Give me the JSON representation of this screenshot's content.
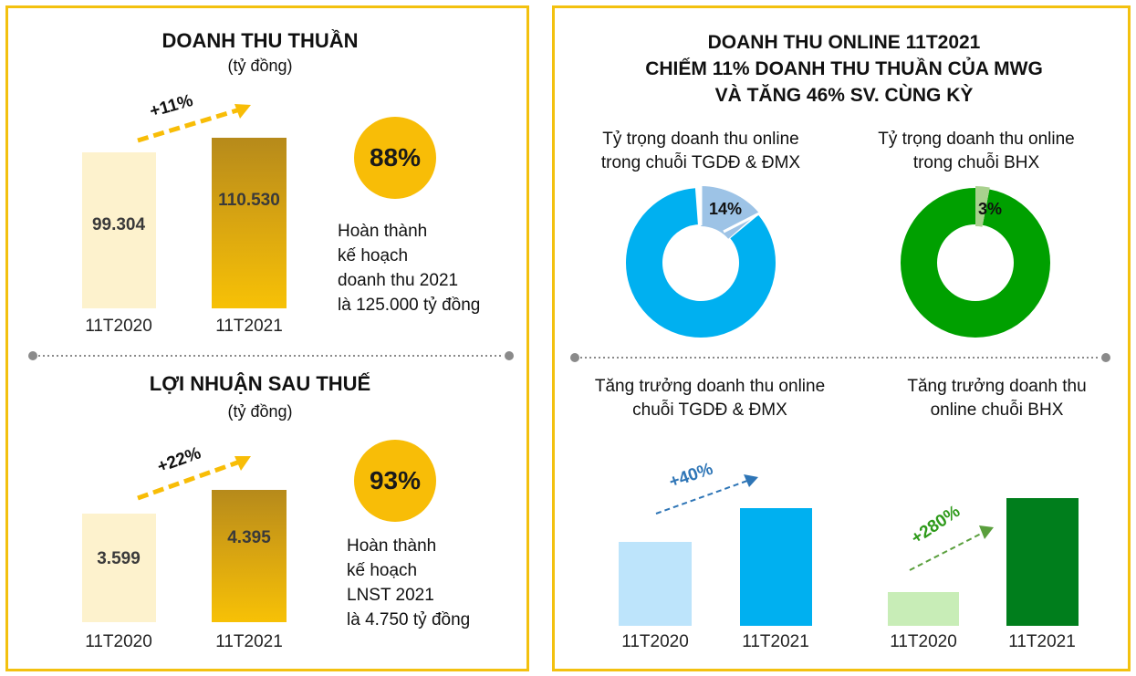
{
  "left": {
    "revenue": {
      "title": "DOANH THU THUẦN",
      "unit": "(tỷ đồng)",
      "growth": "+11%",
      "bars": [
        {
          "label": "11T2020",
          "value": "99.304"
        },
        {
          "label": "11T2021",
          "value": "110.530"
        }
      ],
      "completion": "88%",
      "note": [
        "Hoàn thành",
        "kế hoạch",
        "doanh thu 2021",
        "là 125.000 tỷ đồng"
      ]
    },
    "profit": {
      "title": "LỢI NHUẬN SAU THUẾ",
      "unit": "(tỷ đồng)",
      "growth": "+22%",
      "bars": [
        {
          "label": "11T2020",
          "value": "3.599"
        },
        {
          "label": "11T2021",
          "value": "4.395"
        }
      ],
      "completion": "93%",
      "note": [
        "Hoàn thành",
        "kế hoạch",
        "LNST 2021",
        "là 4.750 tỷ đồng"
      ]
    }
  },
  "right": {
    "title": [
      "DOANH THU ONLINE 11T2021",
      "CHIẾM 11% DOANH THU THUẦN CỦA MWG",
      "VÀ TĂNG 46% SV. CÙNG KỲ"
    ],
    "donut_tgdd": {
      "title": [
        "Tỷ trọng doanh thu online",
        "trong chuỗi TGDĐ & ĐMX"
      ],
      "label": "14%"
    },
    "donut_bhx": {
      "title": [
        "Tỷ trọng doanh thu online",
        "trong chuỗi BHX"
      ],
      "label": "3%"
    },
    "growth_tgdd": {
      "title": [
        "Tăng trưởng doanh thu online",
        "chuỗi TGDĐ & ĐMX"
      ],
      "growth": "+40%",
      "labels": [
        "11T2020",
        "11T2021"
      ]
    },
    "growth_bhx": {
      "title": [
        "Tăng trưởng doanh thu",
        "online chuỗi BHX"
      ],
      "growth": "+280%",
      "labels": [
        "11T2020",
        "11T2021"
      ]
    }
  },
  "colors": {
    "border": "#f3c10f",
    "gold": "#f8bd07",
    "light_gold": "#fdf2cd",
    "blue": "#00b0f0",
    "light_blue": "#9dc3e6",
    "pale_blue": "#bde4fb",
    "green": "#00a000",
    "dark_green": "#007e1c",
    "pale_green": "#c8edb7",
    "light_green": "#a9d18e"
  },
  "chart_data": [
    {
      "type": "bar",
      "title": "DOANH THU THUẦN",
      "ylabel": "(tỷ đồng)",
      "categories": [
        "11T2020",
        "11T2021"
      ],
      "values": [
        99304,
        110530
      ],
      "growth": "+11%"
    },
    {
      "type": "bar",
      "title": "LỢI NHUẬN SAU THUẾ",
      "ylabel": "(tỷ đồng)",
      "categories": [
        "11T2020",
        "11T2021"
      ],
      "values": [
        3599,
        4395
      ],
      "growth": "+22%"
    },
    {
      "type": "pie",
      "title": "Tỷ trọng doanh thu online trong chuỗi TGDĐ & ĐMX",
      "values": [
        14,
        86
      ],
      "labels": [
        "14%",
        ""
      ]
    },
    {
      "type": "pie",
      "title": "Tỷ trọng doanh thu online trong chuỗi BHX",
      "values": [
        3,
        97
      ],
      "labels": [
        "3%",
        ""
      ]
    },
    {
      "type": "bar",
      "title": "Tăng trưởng doanh thu online chuỗi TGDĐ & ĐMX",
      "categories": [
        "11T2020",
        "11T2021"
      ],
      "values": [
        1,
        1.4
      ],
      "growth": "+40%"
    },
    {
      "type": "bar",
      "title": "Tăng trưởng doanh thu online chuỗi BHX",
      "categories": [
        "11T2020",
        "11T2021"
      ],
      "values": [
        1,
        3.8
      ],
      "growth": "+280%"
    }
  ]
}
